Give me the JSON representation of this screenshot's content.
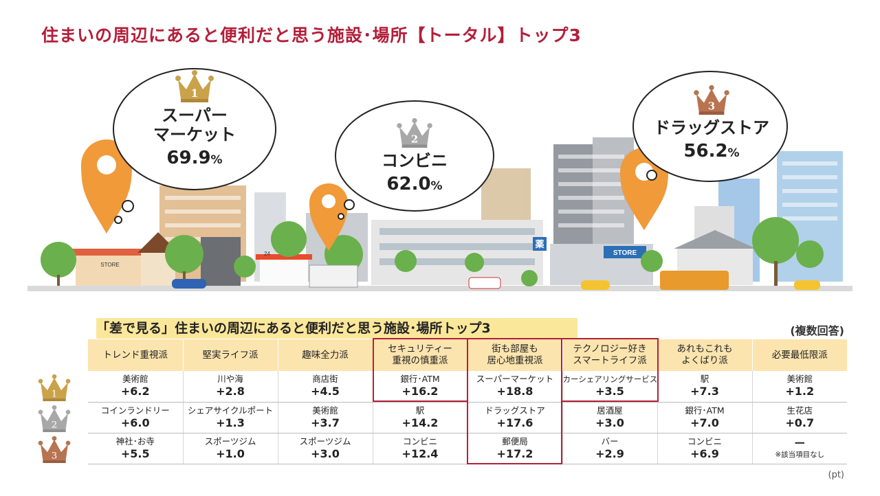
{
  "title": "住まいの周辺にあると便利だと思う施設･場所【トータル】トップ3",
  "top3": [
    {
      "rank": "1",
      "name_line1": "スーパー",
      "name_line2": "マーケット",
      "value": "69.9",
      "unit": "%",
      "crown_color": "#c9a24a"
    },
    {
      "rank": "2",
      "name_line1": "コンビニ",
      "value": "62.0",
      "unit": "%",
      "crown_color": "#a8a8a8"
    },
    {
      "rank": "3",
      "name_line1": "ドラッグストア",
      "value": "56.2",
      "unit": "%",
      "crown_color": "#b87350"
    }
  ],
  "scene_labels": {
    "store1": "STORE",
    "store2": "STORE",
    "pharmacy": "薬",
    "convenience": "24"
  },
  "colors": {
    "title": "#b31f3a",
    "pin": "#f09a3a",
    "highlight_border": "#b31f3a",
    "header_bg": "#fbe4ae",
    "subtitle_bg": "#fbe79a"
  },
  "table": {
    "subtitle": "「差で見る」住まいの周辺にあると便利だと思う施設･場所トップ3",
    "note": "(複数回答)",
    "unit": "(pt)",
    "columns": [
      {
        "line1": "トレンド重視派",
        "line2": ""
      },
      {
        "line1": "堅実ライフ派",
        "line2": ""
      },
      {
        "line1": "趣味全力派",
        "line2": ""
      },
      {
        "line1": "セキュリティー",
        "line2": "重視の慎重派"
      },
      {
        "line1": "街も部屋も",
        "line2": "居心地重視派"
      },
      {
        "line1": "テクノロジー好き",
        "line2": "スマートライフ派"
      },
      {
        "line1": "あれもこれも",
        "line2": "よくばり派"
      },
      {
        "line1": "必要最低限派",
        "line2": ""
      }
    ],
    "rows": [
      [
        {
          "name": "美術館",
          "value": "+6.2"
        },
        {
          "name": "川や海",
          "value": "+2.8"
        },
        {
          "name": "商店街",
          "value": "+4.5"
        },
        {
          "name": "銀行･ATM",
          "value": "+16.2"
        },
        {
          "name": "スーパーマーケット",
          "value": "+18.8"
        },
        {
          "name": "カーシェアリングサービス",
          "value": "+3.5"
        },
        {
          "name": "駅",
          "value": "+7.3"
        },
        {
          "name": "美術館",
          "value": "+1.2"
        }
      ],
      [
        {
          "name": "コインランドリー",
          "value": "+6.0"
        },
        {
          "name": "シェアサイクルポート",
          "value": "+1.3"
        },
        {
          "name": "美術館",
          "value": "+3.7"
        },
        {
          "name": "駅",
          "value": "+14.2"
        },
        {
          "name": "ドラッグストア",
          "value": "+17.6"
        },
        {
          "name": "居酒屋",
          "value": "+3.0"
        },
        {
          "name": "銀行･ATM",
          "value": "+7.0"
        },
        {
          "name": "生花店",
          "value": "+0.7"
        }
      ],
      [
        {
          "name": "神社･お寺",
          "value": "+5.5"
        },
        {
          "name": "スポーツジム",
          "value": "+1.0"
        },
        {
          "name": "スポーツジム",
          "value": "+3.0"
        },
        {
          "name": "コンビニ",
          "value": "+12.4"
        },
        {
          "name": "郵便局",
          "value": "+17.2"
        },
        {
          "name": "バー",
          "value": "+2.9"
        },
        {
          "name": "コンビニ",
          "value": "+6.9"
        },
        {
          "name": "ー",
          "value": "",
          "note": "※該当項目なし"
        }
      ]
    ]
  }
}
